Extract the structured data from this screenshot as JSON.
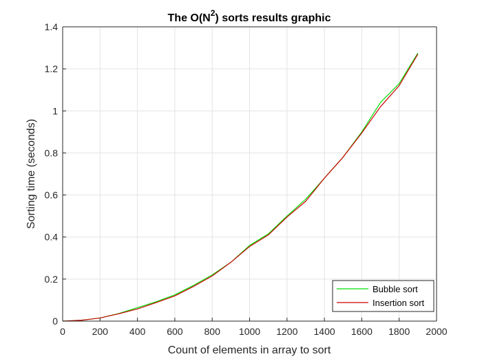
{
  "chart_data": {
    "type": "line",
    "title": {
      "prefix": "The O(N",
      "superscript": "2",
      "suffix": ") sorts results graphic"
    },
    "xlabel": "Count of elements in array to sort",
    "ylabel": "Sorting time (seconds)",
    "xlim": [
      0,
      2000
    ],
    "ylim": [
      0,
      1.4
    ],
    "xticks": [
      0,
      200,
      400,
      600,
      800,
      1000,
      1200,
      1400,
      1600,
      1800,
      2000
    ],
    "yticks": [
      0,
      0.2,
      0.4,
      0.6,
      0.8,
      1,
      1.2,
      1.4
    ],
    "ytick_labels": [
      "0",
      "0.2",
      "0.4",
      "0.6",
      "0.8",
      "1",
      "1.2",
      "1.4"
    ],
    "grid": true,
    "legend_position": "bottom-right",
    "x": [
      0,
      100,
      200,
      300,
      400,
      500,
      600,
      700,
      800,
      900,
      1000,
      1100,
      1200,
      1300,
      1400,
      1500,
      1600,
      1700,
      1800,
      1900
    ],
    "series": [
      {
        "name": "Bubble sort",
        "color": "#00dd00",
        "values": [
          0.0,
          0.004,
          0.015,
          0.036,
          0.064,
          0.092,
          0.125,
          0.17,
          0.22,
          0.28,
          0.36,
          0.415,
          0.5,
          0.58,
          0.68,
          0.78,
          0.9,
          1.04,
          1.13,
          1.275
        ]
      },
      {
        "name": "Insertion sort",
        "color": "#cc0000",
        "values": [
          0.0,
          0.004,
          0.015,
          0.035,
          0.058,
          0.088,
          0.12,
          0.165,
          0.215,
          0.28,
          0.355,
          0.41,
          0.495,
          0.57,
          0.68,
          0.78,
          0.895,
          1.02,
          1.12,
          1.27
        ]
      }
    ]
  }
}
